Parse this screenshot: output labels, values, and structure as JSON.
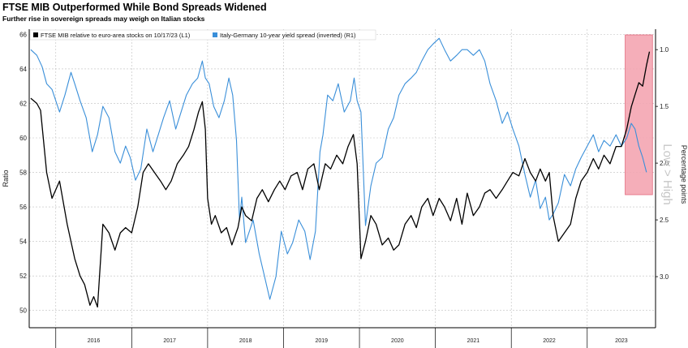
{
  "title": "FTSE MIB Outperformed While Bond Spreads Widened",
  "subtitle": "Further rise in sovereign spreads may weigh on Italian stocks",
  "chart_data": {
    "type": "line",
    "ylabel": "Ratio",
    "y2label": "Percentage points",
    "y2_annotation": "Low > High",
    "ylim": [
      49,
      66.3
    ],
    "y2lim": [
      0.82,
      3.45
    ],
    "y2_inverted": true,
    "yticks": [
      "50",
      "52",
      "54",
      "56",
      "58",
      "60",
      "62",
      "64",
      "66"
    ],
    "y2ticks": [
      "1.0",
      "1.5",
      "2.0",
      "2.5",
      "3.0"
    ],
    "xticks": [
      "2016",
      "2017",
      "2018",
      "2019",
      "2020",
      "2021",
      "2022",
      "2023"
    ],
    "grid": true,
    "legend_position": "top-left",
    "highlight": {
      "x_start": 2023.5,
      "x_end": 2023.86,
      "color": "#f4a6b2"
    },
    "series": [
      {
        "name": "FTSE MIB relative to euro-area stocks on 10/17/23 (L1)",
        "axis": "left",
        "color": "#000000",
        "x": [
          2015.67,
          2015.75,
          2015.8,
          2015.88,
          2015.95,
          2016.05,
          2016.15,
          2016.25,
          2016.32,
          2016.38,
          2016.45,
          2016.5,
          2016.55,
          2016.62,
          2016.7,
          2016.78,
          2016.85,
          2016.92,
          2017.0,
          2017.08,
          2017.15,
          2017.22,
          2017.3,
          2017.38,
          2017.45,
          2017.52,
          2017.6,
          2017.68,
          2017.75,
          2017.82,
          2017.88,
          2017.93,
          2017.97,
          2018.0,
          2018.05,
          2018.1,
          2018.18,
          2018.25,
          2018.32,
          2018.4,
          2018.45,
          2018.5,
          2018.58,
          2018.65,
          2018.72,
          2018.8,
          2018.88,
          2018.95,
          2019.02,
          2019.1,
          2019.18,
          2019.25,
          2019.32,
          2019.4,
          2019.47,
          2019.55,
          2019.62,
          2019.7,
          2019.78,
          2019.85,
          2019.92,
          2019.97,
          2020.02,
          2020.08,
          2020.15,
          2020.22,
          2020.3,
          2020.38,
          2020.45,
          2020.52,
          2020.6,
          2020.68,
          2020.75,
          2020.82,
          2020.9,
          2020.97,
          2021.05,
          2021.12,
          2021.2,
          2021.28,
          2021.35,
          2021.42,
          2021.5,
          2021.58,
          2021.65,
          2021.72,
          2021.8,
          2021.88,
          2021.95,
          2022.02,
          2022.1,
          2022.18,
          2022.25,
          2022.32,
          2022.38,
          2022.45,
          2022.5,
          2022.55,
          2022.62,
          2022.7,
          2022.78,
          2022.85,
          2022.92,
          2023.0,
          2023.08,
          2023.15,
          2023.22,
          2023.3,
          2023.38,
          2023.45,
          2023.52,
          2023.58,
          2023.63,
          2023.68,
          2023.73,
          2023.78,
          2023.82
        ],
        "y": [
          62.3,
          62.0,
          61.6,
          58.0,
          56.5,
          57.5,
          55.0,
          53.0,
          52.0,
          51.5,
          50.3,
          50.8,
          50.2,
          55.0,
          54.5,
          53.5,
          54.5,
          54.8,
          54.5,
          56.0,
          58.0,
          58.5,
          58.0,
          57.5,
          57.0,
          57.5,
          58.5,
          59.0,
          59.5,
          60.5,
          61.5,
          62.1,
          60.5,
          56.5,
          55.0,
          55.5,
          54.5,
          54.8,
          53.8,
          54.8,
          56.0,
          55.5,
          55.2,
          56.5,
          57.0,
          56.3,
          57.0,
          57.5,
          57.0,
          57.8,
          58.0,
          57.0,
          58.2,
          58.5,
          57.0,
          58.5,
          58.2,
          59.0,
          58.5,
          59.5,
          60.2,
          58.5,
          53.0,
          54.0,
          55.5,
          55.0,
          53.8,
          54.2,
          53.5,
          53.8,
          55.0,
          55.5,
          54.8,
          56.0,
          56.5,
          55.5,
          56.5,
          56.0,
          55.2,
          56.5,
          55.0,
          56.8,
          55.5,
          56.0,
          56.8,
          57.0,
          56.5,
          57.0,
          57.5,
          58.0,
          57.8,
          58.8,
          58.0,
          57.5,
          58.2,
          57.5,
          58.0,
          55.5,
          54.0,
          54.5,
          55.0,
          56.5,
          57.5,
          58.0,
          58.8,
          58.2,
          59.0,
          58.5,
          59.5,
          59.5,
          60.5,
          61.8,
          62.5,
          63.2,
          63.0,
          64.2,
          65.0
        ]
      },
      {
        "name": "Italy-Germany 10-year yield spread (inverted) (R1)",
        "axis": "right",
        "color": "#3a8fd9",
        "x": [
          2015.67,
          2015.75,
          2015.82,
          2015.88,
          2015.95,
          2016.05,
          2016.12,
          2016.2,
          2016.25,
          2016.32,
          2016.4,
          2016.48,
          2016.55,
          2016.62,
          2016.7,
          2016.78,
          2016.85,
          2016.92,
          2016.98,
          2017.05,
          2017.12,
          2017.2,
          2017.28,
          2017.35,
          2017.42,
          2017.5,
          2017.58,
          2017.65,
          2017.72,
          2017.8,
          2017.87,
          2017.93,
          2017.97,
          2018.02,
          2018.08,
          2018.15,
          2018.22,
          2018.28,
          2018.33,
          2018.38,
          2018.42,
          2018.45,
          2018.5,
          2018.55,
          2018.6,
          2018.68,
          2018.75,
          2018.82,
          2018.9,
          2018.97,
          2019.05,
          2019.12,
          2019.2,
          2019.28,
          2019.35,
          2019.42,
          2019.48,
          2019.52,
          2019.58,
          2019.65,
          2019.72,
          2019.8,
          2019.88,
          2019.93,
          2019.97,
          2020.02,
          2020.08,
          2020.15,
          2020.22,
          2020.3,
          2020.38,
          2020.45,
          2020.52,
          2020.6,
          2020.68,
          2020.75,
          2020.82,
          2020.9,
          2020.97,
          2021.05,
          2021.12,
          2021.2,
          2021.28,
          2021.35,
          2021.42,
          2021.5,
          2021.58,
          2021.65,
          2021.72,
          2021.8,
          2021.88,
          2021.95,
          2022.02,
          2022.1,
          2022.18,
          2022.25,
          2022.32,
          2022.38,
          2022.45,
          2022.5,
          2022.55,
          2022.62,
          2022.7,
          2022.78,
          2022.85,
          2022.92,
          2023.0,
          2023.08,
          2023.15,
          2023.22,
          2023.3,
          2023.38,
          2023.45,
          2023.52,
          2023.58,
          2023.63,
          2023.68,
          2023.73,
          2023.78
        ],
        "y": [
          1.0,
          1.05,
          1.15,
          1.3,
          1.35,
          1.55,
          1.4,
          1.2,
          1.3,
          1.45,
          1.6,
          1.9,
          1.75,
          1.5,
          1.6,
          1.9,
          2.0,
          1.85,
          1.95,
          2.15,
          2.05,
          1.7,
          1.9,
          1.75,
          1.6,
          1.45,
          1.7,
          1.55,
          1.4,
          1.3,
          1.25,
          1.1,
          1.25,
          1.3,
          1.5,
          1.6,
          1.45,
          1.25,
          1.4,
          1.8,
          2.5,
          2.3,
          2.7,
          2.6,
          2.5,
          2.8,
          3.0,
          3.2,
          3.0,
          2.6,
          2.8,
          2.7,
          2.5,
          2.6,
          2.85,
          2.6,
          1.9,
          1.75,
          1.4,
          1.45,
          1.3,
          1.55,
          1.45,
          1.25,
          1.45,
          1.55,
          2.55,
          2.2,
          2.0,
          1.95,
          1.7,
          1.6,
          1.4,
          1.3,
          1.25,
          1.2,
          1.1,
          1.0,
          0.95,
          0.9,
          1.0,
          1.1,
          1.05,
          1.0,
          1.0,
          1.05,
          1.0,
          1.1,
          1.3,
          1.45,
          1.65,
          1.55,
          1.7,
          1.85,
          2.1,
          2.3,
          2.15,
          2.4,
          2.3,
          2.5,
          2.45,
          2.35,
          2.1,
          2.2,
          2.05,
          1.95,
          1.85,
          1.75,
          1.9,
          1.8,
          1.85,
          1.75,
          1.85,
          1.78,
          1.65,
          1.7,
          1.85,
          1.95,
          2.08
        ]
      }
    ]
  }
}
